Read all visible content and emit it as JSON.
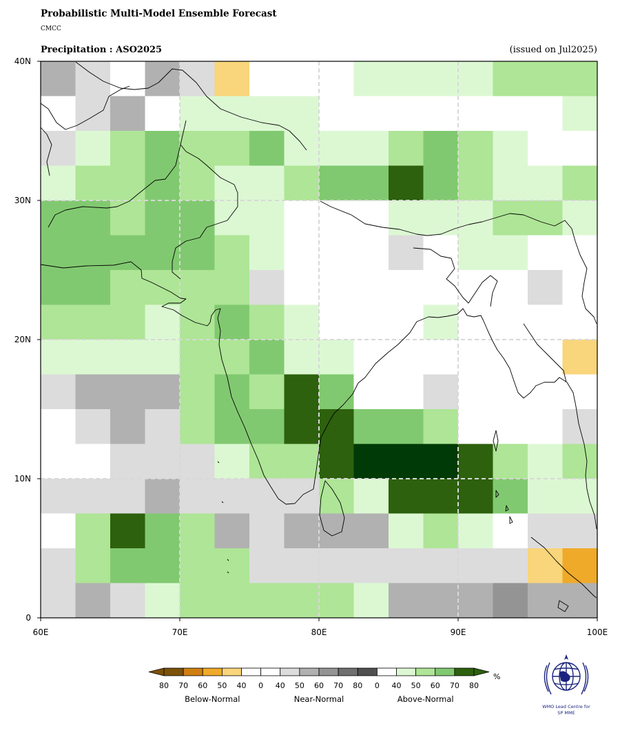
{
  "header": {
    "title": "Probabilistic Multi-Model Ensemble Forecast",
    "subtitle": "CMCC",
    "variable": "Precipitation : ASO2025",
    "issued": "(issued on Jul2025)"
  },
  "map": {
    "lon_range": [
      60,
      100
    ],
    "lat_range": [
      0,
      40
    ],
    "cell_deg": 2.5,
    "x_ticks": [
      {
        "value": 60,
        "label": "60E"
      },
      {
        "value": 70,
        "label": "70E"
      },
      {
        "value": 80,
        "label": "80E"
      },
      {
        "value": 90,
        "label": "90E"
      },
      {
        "value": 100,
        "label": "100E"
      }
    ],
    "y_ticks": [
      {
        "value": 40,
        "label": "40N"
      },
      {
        "value": 30,
        "label": "30N"
      },
      {
        "value": 20,
        "label": "20N"
      },
      {
        "value": 10,
        "label": "10N"
      },
      {
        "value": 0,
        "label": "0"
      }
    ],
    "legend_codes": "W=white, N4=near 40, N5=near 50, N6=near 60, N7=near 70, N8=near 80, A4..A8=above-normal 40..80, B4..B8=below-normal 40..80",
    "grid_rows_north_to_south": [
      [
        "N5",
        "N4",
        "W",
        "N5",
        "N4",
        "B5",
        "W",
        "W",
        "W",
        "A4",
        "A4",
        "A4",
        "A4",
        "A5",
        "A5",
        "A5"
      ],
      [
        "W",
        "N4",
        "N5",
        "W",
        "A4",
        "A4",
        "A4",
        "A4",
        "W",
        "W",
        "W",
        "W",
        "W",
        "W",
        "W",
        "A4"
      ],
      [
        "N4",
        "A4",
        "A5",
        "A6",
        "A5",
        "A5",
        "A6",
        "A4",
        "A4",
        "A4",
        "A5",
        "A6",
        "A5",
        "A4",
        "W",
        "W"
      ],
      [
        "A4",
        "A5",
        "A5",
        "A6",
        "A5",
        "A4",
        "A4",
        "A5",
        "A6",
        "A6",
        "A8",
        "A6",
        "A5",
        "A4",
        "A4",
        "A5"
      ],
      [
        "A6",
        "A6",
        "A5",
        "A6",
        "A6",
        "A4",
        "A4",
        "W",
        "W",
        "W",
        "A4",
        "A4",
        "A4",
        "A5",
        "A5",
        "A4"
      ],
      [
        "A6",
        "A6",
        "A6",
        "A6",
        "A6",
        "A5",
        "A4",
        "W",
        "W",
        "W",
        "N4",
        "W",
        "A4",
        "A4",
        "W",
        "W"
      ],
      [
        "A6",
        "A6",
        "A5",
        "A5",
        "A5",
        "A5",
        "N4",
        "W",
        "W",
        "W",
        "W",
        "W",
        "W",
        "W",
        "N4",
        "W"
      ],
      [
        "A5",
        "A5",
        "A5",
        "A4",
        "A5",
        "A6",
        "A5",
        "A4",
        "W",
        "W",
        "W",
        "A4",
        "W",
        "W",
        "W",
        "W"
      ],
      [
        "A4",
        "A4",
        "A4",
        "A4",
        "A5",
        "A5",
        "A6",
        "A4",
        "A4",
        "W",
        "W",
        "W",
        "W",
        "W",
        "W",
        "B5"
      ],
      [
        "N4",
        "N5",
        "N5",
        "N5",
        "A5",
        "A6",
        "A5",
        "A8",
        "A6",
        "W",
        "W",
        "N4",
        "W",
        "W",
        "W",
        "W"
      ],
      [
        "W",
        "N4",
        "N5",
        "N4",
        "A5",
        "A6",
        "A6",
        "A8",
        "A8",
        "A6",
        "A6",
        "A5",
        "W",
        "W",
        "W",
        "N4"
      ],
      [
        "W",
        "W",
        "N4",
        "N4",
        "N4",
        "A4",
        "A5",
        "A5",
        "A8",
        "A9",
        "A9",
        "A9",
        "A8",
        "A5",
        "A4",
        "A5"
      ],
      [
        "N4",
        "N4",
        "N4",
        "N5",
        "N4",
        "N4",
        "N4",
        "N4",
        "A5",
        "A4",
        "A8",
        "A8",
        "A8",
        "A6",
        "A4",
        "A4"
      ],
      [
        "W",
        "A5",
        "A8",
        "A6",
        "A5",
        "N5",
        "N4",
        "N5",
        "N5",
        "N5",
        "A4",
        "A5",
        "A4",
        "W",
        "N4",
        "N4"
      ],
      [
        "N4",
        "A5",
        "A6",
        "A6",
        "A5",
        "A5",
        "N4",
        "N4",
        "N4",
        "N4",
        "N4",
        "N4",
        "N4",
        "N4",
        "B5",
        "B6"
      ],
      [
        "N4",
        "N5",
        "N4",
        "A4",
        "A5",
        "A5",
        "A5",
        "A5",
        "A5",
        "A4",
        "N5",
        "N5",
        "N5",
        "N6",
        "N5",
        "N5"
      ]
    ]
  },
  "palette": {
    "W": "#ffffff",
    "N4": "#dcdcdc",
    "N5": "#b1b1b1",
    "N6": "#949494",
    "N7": "#6f6f6f",
    "N8": "#4f4f4f",
    "A4": "#dcf8d3",
    "A5": "#aee596",
    "A6": "#81c970",
    "A7": "#4e9f41",
    "A8": "#2d610d",
    "A9": "#003a06",
    "B4": "#f9d57b",
    "B5": "#f9d57b",
    "B6": "#efaa2a",
    "B7": "#cf7f12",
    "B8": "#7c5108",
    "grid_line": "#d8d8d8",
    "coast": "#000000"
  },
  "colorbar": {
    "unit": "%",
    "segments": [
      {
        "color": "#7c5108",
        "label": "80"
      },
      {
        "color": "#cf7f12",
        "label": "70"
      },
      {
        "color": "#efaa2a",
        "label": "60"
      },
      {
        "color": "#f9d57b",
        "label": "50"
      },
      {
        "color": "#ffffff",
        "label": "40"
      },
      {
        "color": "#ffffff",
        "label": "0"
      },
      {
        "color": "#dcdcdc",
        "label": "40"
      },
      {
        "color": "#b1b1b1",
        "label": "50"
      },
      {
        "color": "#949494",
        "label": "60"
      },
      {
        "color": "#6f6f6f",
        "label": "70"
      },
      {
        "color": "#4f4f4f",
        "label": "80"
      },
      {
        "color": "#ffffff",
        "label": "0"
      },
      {
        "color": "#dcf8d3",
        "label": "40"
      },
      {
        "color": "#aee596",
        "label": "50"
      },
      {
        "color": "#81c970",
        "label": "60"
      },
      {
        "color": "#2d610d",
        "label": "70"
      }
    ],
    "last_label": "80",
    "categories": [
      "Below-Normal",
      "Near-Normal",
      "Above-Normal"
    ],
    "left_arrow_color": "#7c5108",
    "right_arrow_color": "#2d610d"
  },
  "logo": {
    "line1": "WMO Lead Centre for",
    "line2": "SP MME",
    "color": "#1a237e"
  }
}
